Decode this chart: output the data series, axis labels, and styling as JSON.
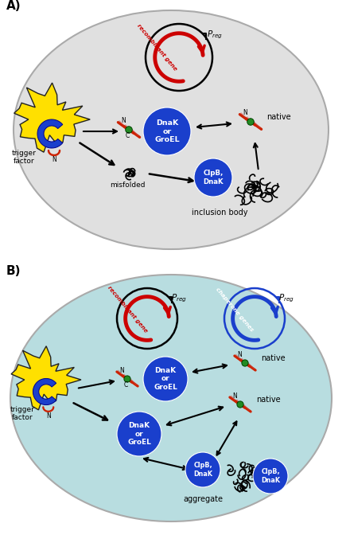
{
  "panel_A_label": "A)",
  "panel_B_label": "B)",
  "panel_A_bg": "#e0e0e0",
  "panel_B_bg": "#b8dde0",
  "ellipse_edge": "#999999",
  "yellow_blob_color": "#FFE000",
  "blue_chaperone_color": "#1a3fcc",
  "red_color": "#cc0000",
  "blue_color": "#1a3fcc",
  "black_color": "#111111",
  "white_color": "#ffffff",
  "green_color": "#228B22",
  "red_helix_color": "#cc2200",
  "text_dnakgroEL": "DnaK\nor\nGroEL",
  "text_clpbdnak_A": "ClpB,\nDnaK",
  "text_clpbdnak_B1": "ClpB,\nDnaK",
  "text_clpbdnak_B2": "ClpB,\nDnaK",
  "text_trigger": "trigger\nfactor",
  "text_misfolded": "misfolded",
  "text_inclusion": "inclusion body",
  "text_native_A": "native",
  "text_native_B1": "native",
  "text_native_B2": "native",
  "text_aggregate": "aggregate",
  "figsize": [
    4.4,
    6.72
  ],
  "dpi": 100
}
